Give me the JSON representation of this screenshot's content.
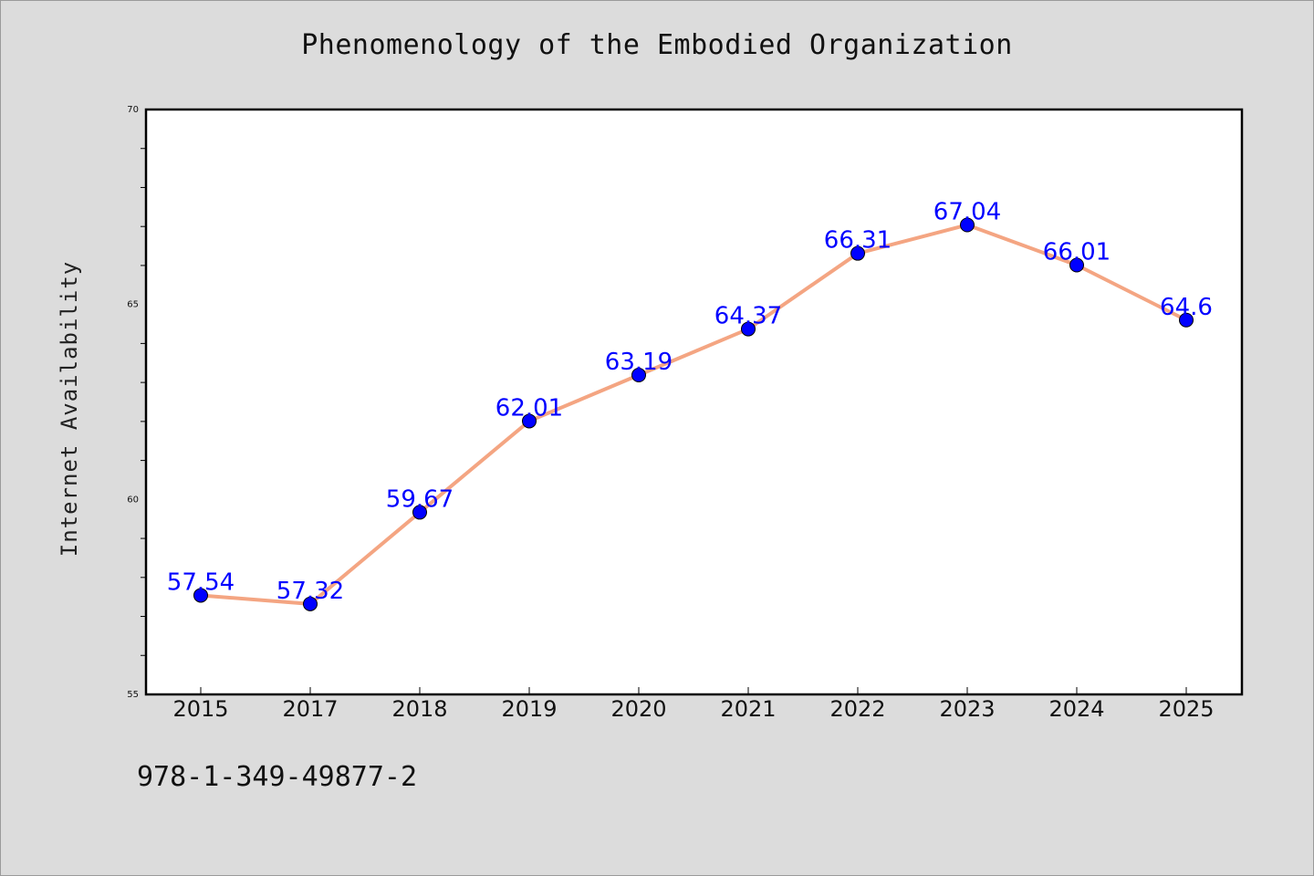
{
  "isbn": "978-1-349-49877-2",
  "colors": {
    "background": "#dcdcdc",
    "plot_background": "#ffffff",
    "line": "#f4a582",
    "marker": "#0000ff",
    "data_label": "#0000ff"
  },
  "chart_data": {
    "type": "line",
    "title": "Phenomenology of the Embodied Organization",
    "xlabel": "",
    "ylabel": "Internet Availability",
    "categories": [
      "2015",
      "2017",
      "2018",
      "2019",
      "2020",
      "2021",
      "2022",
      "2023",
      "2024",
      "2025"
    ],
    "series": [
      {
        "values": [
          57.54,
          57.32,
          59.67,
          62.01,
          63.19,
          64.37,
          66.31,
          67.04,
          66.01,
          64.6
        ],
        "labels": [
          "57.54",
          "57.32",
          "59.67",
          "62.01",
          "63.19",
          "64.37",
          "66.31",
          "67.04",
          "66.01",
          "64.6"
        ]
      }
    ],
    "ylim": [
      55,
      70
    ],
    "yticks": [
      "55",
      "60",
      "65",
      "70"
    ],
    "grid": false,
    "legend": "none",
    "marker": "circle"
  }
}
